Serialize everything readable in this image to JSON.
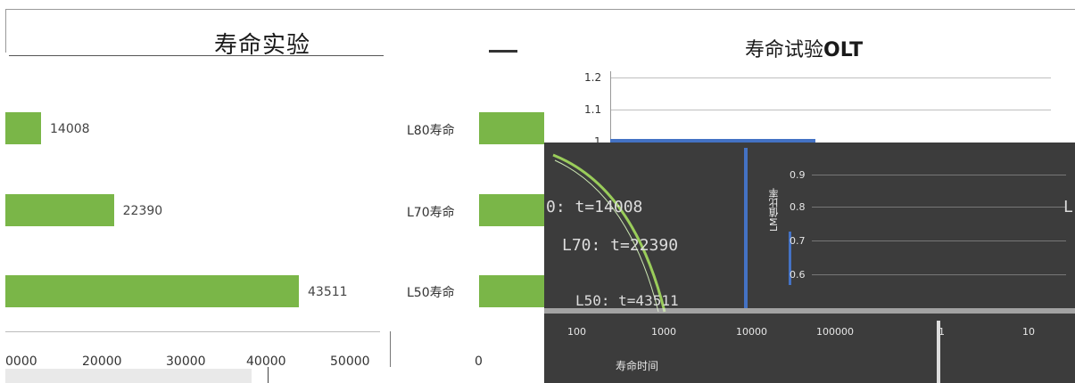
{
  "chart_data": [
    {
      "type": "bar",
      "orientation": "horizontal",
      "title": "寿命实验",
      "categories": [
        "L80寿命",
        "L70寿命",
        "L50寿命"
      ],
      "values": [
        14008,
        22390,
        43511
      ],
      "value_labels": [
        "14008",
        "22390",
        "43511"
      ],
      "x_ticks": [
        "0000",
        "20000",
        "30000",
        "40000",
        "50000"
      ],
      "xlim": [
        10000,
        55000
      ],
      "bar_color": "#7ab648"
    },
    {
      "type": "line",
      "title": "寿命试验",
      "title_suffix": "OLT",
      "y_ticks": [
        "1.2",
        "1.1",
        "1",
        "0.9",
        "0.8",
        "0.7",
        "0.6"
      ],
      "y_values": [
        1.2,
        1.1,
        1.0,
        0.9,
        0.8,
        0.7,
        0.6
      ],
      "x_ticks": [
        "100",
        "1000",
        "10000",
        "100000",
        "1",
        "10"
      ],
      "xlabel": "寿命时间",
      "ylabel": "LM值比率",
      "x_scale": "log",
      "annotations": [
        "0: t=14008",
        "L70: t=22390",
        "L50: t=43511"
      ],
      "line_color": "#4472c4",
      "curve_color": "#9acd5a"
    }
  ]
}
